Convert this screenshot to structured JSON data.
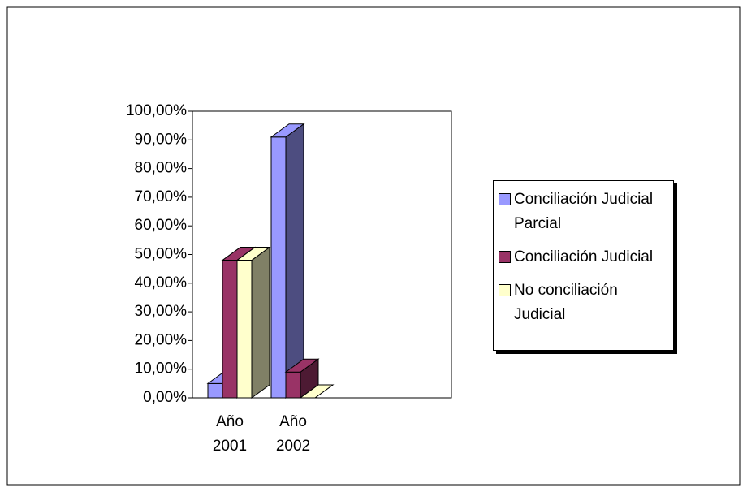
{
  "chart_data": {
    "type": "bar3d",
    "categories": [
      "Año 2001",
      "Año 2002"
    ],
    "series": [
      {
        "name": "Conciliación Judicial Parcial",
        "color": "#9999ff",
        "side": "#4d4d80",
        "values": [
          5,
          91
        ]
      },
      {
        "name": "Conciliación Judicial",
        "color": "#993366",
        "side": "#4d1a33",
        "values": [
          48,
          9
        ]
      },
      {
        "name": "No conciliación Judicial",
        "color": "#ffffcc",
        "side": "#808066",
        "values": [
          48,
          0
        ]
      }
    ],
    "ylim": [
      0,
      100
    ],
    "yticks": [
      {
        "value": 0,
        "label": "0,00%"
      },
      {
        "value": 10,
        "label": "10,00%"
      },
      {
        "value": 20,
        "label": "20,00%"
      },
      {
        "value": 30,
        "label": "30,00%"
      },
      {
        "value": 40,
        "label": "40,00%"
      },
      {
        "value": 50,
        "label": "50,00%"
      },
      {
        "value": 60,
        "label": "60,00%"
      },
      {
        "value": 70,
        "label": "70,00%"
      },
      {
        "value": 80,
        "label": "80,00%"
      },
      {
        "value": 90,
        "label": "90,00%"
      },
      {
        "value": 100,
        "label": "100,00%"
      }
    ],
    "legend": "right"
  }
}
